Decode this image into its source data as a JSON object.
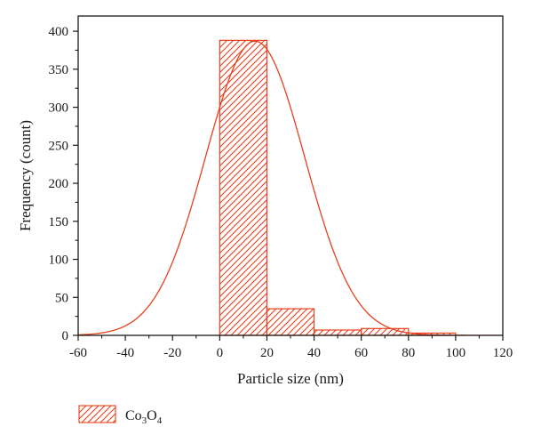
{
  "chart_data": {
    "type": "bar",
    "title": "",
    "xlabel": "Particle size (nm)",
    "ylabel": "Frequency (count)",
    "xlim": [
      -60,
      120
    ],
    "ylim": [
      0,
      420
    ],
    "x_ticks": [
      -60,
      -40,
      -20,
      0,
      20,
      40,
      60,
      80,
      100,
      120
    ],
    "x_tick_labels": [
      "-60",
      "-40",
      "-20",
      "0",
      "20",
      "40",
      "60",
      "80",
      "100",
      "120"
    ],
    "y_ticks": [
      0,
      50,
      100,
      150,
      200,
      250,
      300,
      350,
      400
    ],
    "y_tick_labels": [
      "0",
      "50",
      "100",
      "150",
      "200",
      "250",
      "300",
      "350",
      "400"
    ],
    "grid": false,
    "legend_position": "bottom-left",
    "bins": [
      {
        "x0": 0,
        "x1": 20,
        "value": 388
      },
      {
        "x0": 20,
        "x1": 40,
        "value": 35
      },
      {
        "x0": 40,
        "x1": 60,
        "value": 7
      },
      {
        "x0": 60,
        "x1": 80,
        "value": 9
      },
      {
        "x0": 80,
        "x1": 100,
        "value": 3
      },
      {
        "x0": 100,
        "x1": 120,
        "value": 0
      }
    ],
    "fit_curve": {
      "type": "gaussian",
      "peak": 387,
      "center": 15,
      "sigma": 21
    },
    "series": [
      {
        "name_base": "Co",
        "sub1": "3",
        "name_mid": "O",
        "sub2": "4",
        "color": "#e8401c",
        "pattern": "diagonal-hatch"
      }
    ]
  },
  "colors": {
    "series": "#e8401c",
    "axis": "#1a1a1a"
  }
}
